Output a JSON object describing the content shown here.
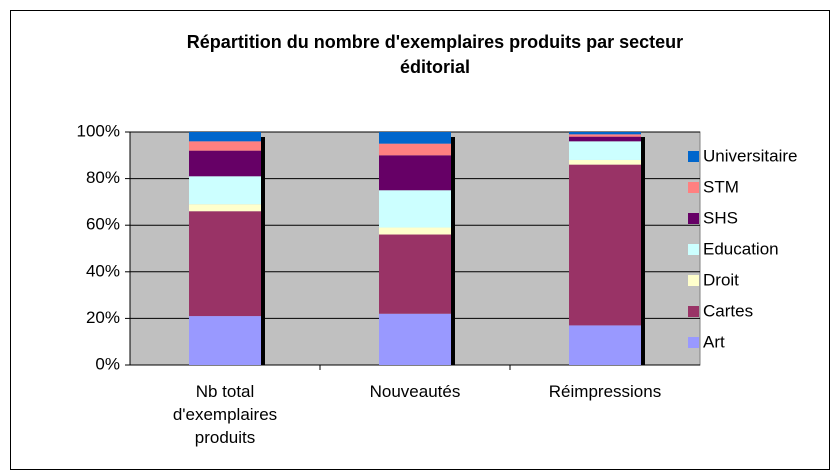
{
  "chart_data": {
    "type": "stacked_bar_percent",
    "title": "Répartition du nombre d'exemplaires produits par secteur éditorial",
    "categories": [
      "Nb total d'exemplaires produits",
      "Nouveautés",
      "Réimpressions"
    ],
    "series": [
      {
        "name": "Art",
        "color": "#9999ff",
        "values": [
          21,
          22,
          17
        ]
      },
      {
        "name": "Cartes",
        "color": "#993366",
        "values": [
          45,
          34,
          69
        ]
      },
      {
        "name": "Droit",
        "color": "#ffffcc",
        "values": [
          3,
          3,
          2
        ]
      },
      {
        "name": "Education",
        "color": "#ccffff",
        "values": [
          12,
          16,
          8
        ]
      },
      {
        "name": "SHS",
        "color": "#660066",
        "values": [
          11,
          15,
          2
        ]
      },
      {
        "name": "STM",
        "color": "#ff8080",
        "values": [
          4,
          5,
          1
        ]
      },
      {
        "name": "Universitaire",
        "color": "#0066cc",
        "values": [
          4,
          5,
          1
        ]
      }
    ],
    "ylim": [
      0,
      100
    ],
    "yticks": [
      {
        "value": 0,
        "label": "0%"
      },
      {
        "value": 20,
        "label": "20%"
      },
      {
        "value": 40,
        "label": "40%"
      },
      {
        "value": 60,
        "label": "60%"
      },
      {
        "value": 80,
        "label": "80%"
      },
      {
        "value": 100,
        "label": "100%"
      }
    ],
    "grid": true,
    "legend": "right"
  }
}
